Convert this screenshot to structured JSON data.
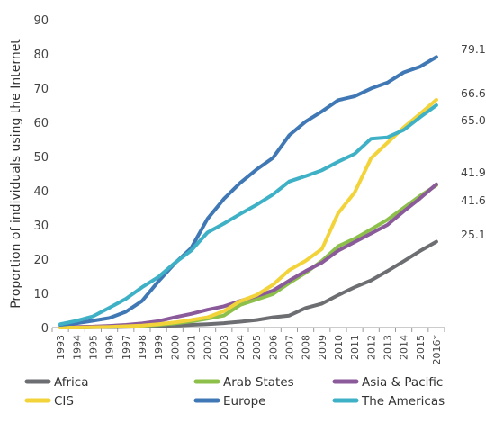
{
  "chart_data": {
    "type": "line",
    "ylabel": "Proportion of individuals using the Internet",
    "xlabel": "",
    "ylim": [
      0,
      90
    ],
    "y_ticks": [
      0,
      10,
      20,
      30,
      40,
      50,
      60,
      70,
      80,
      90
    ],
    "categories": [
      "1993",
      "1994",
      "1995",
      "1996",
      "1997",
      "1998",
      "1999",
      "2000",
      "2001",
      "2002",
      "2003",
      "2004",
      "2005",
      "2006",
      "2007",
      "2008",
      "2009",
      "2010",
      "2011",
      "2012",
      "2013",
      "2014",
      "2015",
      "2016*"
    ],
    "series": [
      {
        "name": "Africa",
        "color": "#6d6e71",
        "values": [
          0,
          0,
          0.1,
          0.1,
          0.2,
          0.3,
          0.4,
          0.6,
          0.8,
          1.0,
          1.3,
          1.7,
          2.2,
          3.0,
          3.5,
          5.7,
          7.0,
          9.5,
          11.8,
          13.8,
          16.5,
          19.4,
          22.4,
          25.1
        ]
      },
      {
        "name": "Arab States",
        "color": "#8dc04b",
        "values": [
          0,
          0,
          0.1,
          0.2,
          0.3,
          0.5,
          0.8,
          1.2,
          1.8,
          2.6,
          3.5,
          6.6,
          8.2,
          9.8,
          13.0,
          16.0,
          19.5,
          23.8,
          26.0,
          28.7,
          31.5,
          35.0,
          38.5,
          41.6
        ]
      },
      {
        "name": "Asia & Pacific",
        "color": "#8b5a9a",
        "values": [
          0.1,
          0.2,
          0.3,
          0.5,
          0.8,
          1.2,
          1.9,
          3.0,
          4.0,
          5.2,
          6.2,
          7.8,
          9.2,
          10.8,
          13.7,
          16.5,
          19.0,
          22.5,
          25.0,
          27.5,
          30.0,
          34.0,
          37.8,
          41.9
        ]
      },
      {
        "name": "CIS",
        "color": "#f3d33a",
        "values": [
          0,
          0,
          0.1,
          0.2,
          0.4,
          0.6,
          1.0,
          1.5,
          2.2,
          3.0,
          4.8,
          7.7,
          9.5,
          12.5,
          16.8,
          19.5,
          23.0,
          33.5,
          39.5,
          49.5,
          54.0,
          58.5,
          62.5,
          66.6
        ]
      },
      {
        "name": "Europe",
        "color": "#3f78b4",
        "values": [
          0.8,
          1.3,
          2.0,
          2.8,
          4.6,
          7.8,
          13.5,
          18.8,
          23.2,
          31.8,
          37.6,
          42.3,
          46.2,
          49.6,
          56.2,
          60.2,
          63.2,
          66.5,
          67.6,
          69.9,
          71.6,
          74.6,
          76.3,
          79.1
        ]
      },
      {
        "name": "The Americas",
        "color": "#3fb1c6",
        "values": [
          1.0,
          2.0,
          3.3,
          5.8,
          8.4,
          11.8,
          14.8,
          18.9,
          22.5,
          27.8,
          30.4,
          33.2,
          35.9,
          38.9,
          42.7,
          44.3,
          46.0,
          48.5,
          50.8,
          55.2,
          55.6,
          57.8,
          61.5,
          65.0
        ]
      }
    ],
    "end_labels": [
      {
        "text": "79.1",
        "color": "#3f78b4"
      },
      {
        "text": "66.6",
        "color": "#f3d33a"
      },
      {
        "text": "65.0",
        "color": "#3fb1c6"
      },
      {
        "text": "41.9",
        "color": "#8b5a9a"
      },
      {
        "text": "41.6",
        "color": "#8dc04b"
      },
      {
        "text": "25.1",
        "color": "#6d6e71"
      }
    ],
    "legend_position": "bottom",
    "legend_rows": [
      [
        "Africa",
        "Arab States",
        "Asia & Pacific"
      ],
      [
        "CIS",
        "Europe",
        "The Americas"
      ]
    ],
    "grid": false
  }
}
